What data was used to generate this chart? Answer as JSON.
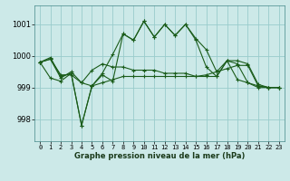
{
  "xlabel": "Graphe pression niveau de la mer (hPa)",
  "ylim": [
    997.3,
    1001.6
  ],
  "xlim": [
    -0.5,
    23.5
  ],
  "yticks": [
    998,
    999,
    1000,
    1001
  ],
  "xticks": [
    0,
    1,
    2,
    3,
    4,
    5,
    6,
    7,
    8,
    9,
    10,
    11,
    12,
    13,
    14,
    15,
    16,
    17,
    18,
    19,
    20,
    21,
    22,
    23
  ],
  "bg_color": "#cce9e8",
  "grid_color": "#99cccc",
  "line_color": "#1a5c1a",
  "series": [
    [
      999.8,
      999.95,
      999.35,
      999.45,
      997.8,
      999.05,
      999.4,
      999.2,
      1000.7,
      1000.5,
      1001.1,
      1000.6,
      1001.0,
      1000.65,
      1001.0,
      1000.55,
      1000.2,
      999.5,
      999.85,
      999.85,
      999.75,
      999.1,
      999.0,
      999.0
    ],
    [
      999.8,
      999.9,
      999.4,
      999.4,
      999.15,
      999.05,
      999.15,
      999.25,
      999.35,
      999.35,
      999.35,
      999.35,
      999.35,
      999.35,
      999.35,
      999.35,
      999.4,
      999.5,
      999.6,
      999.7,
      999.7,
      999.05,
      999.0,
      999.0
    ],
    [
      999.8,
      999.3,
      999.2,
      999.45,
      997.8,
      999.05,
      999.45,
      1000.05,
      1000.7,
      1000.5,
      1001.1,
      1000.6,
      1001.0,
      1000.65,
      1001.0,
      1000.5,
      999.65,
      999.35,
      999.85,
      999.25,
      999.15,
      999.0,
      999.0,
      999.0
    ],
    [
      999.8,
      999.9,
      999.3,
      999.5,
      999.15,
      999.55,
      999.75,
      999.65,
      999.65,
      999.55,
      999.55,
      999.55,
      999.45,
      999.45,
      999.45,
      999.35,
      999.35,
      999.35,
      999.85,
      999.75,
      999.15,
      999.05,
      999.0,
      999.0
    ]
  ]
}
